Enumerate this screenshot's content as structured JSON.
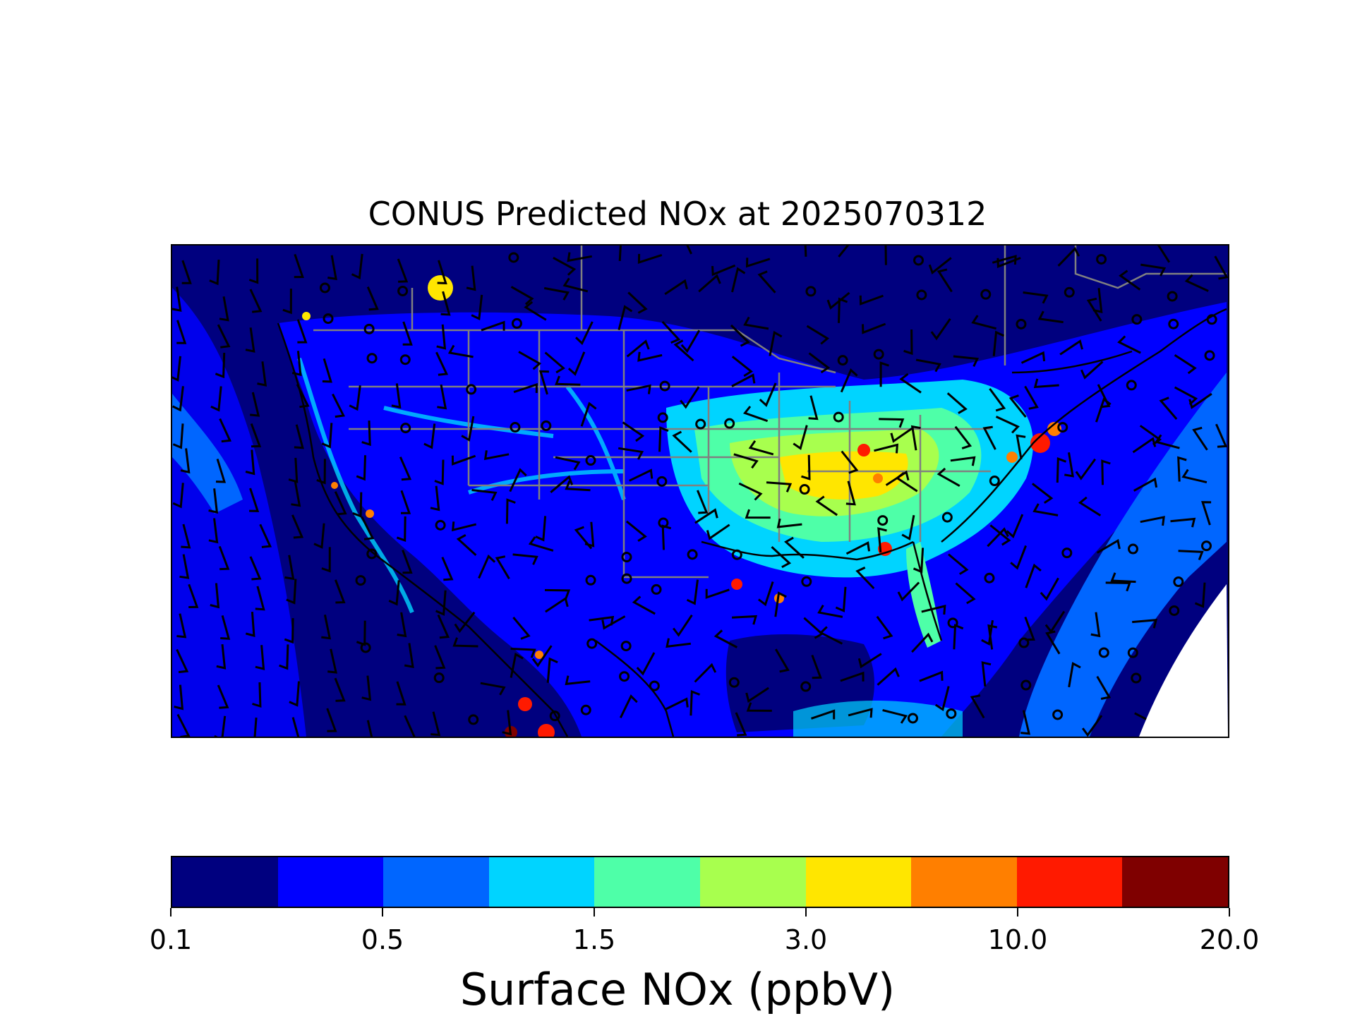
{
  "title": "CONUS Predicted NOx at 2025070312",
  "colorbar": {
    "label": "Surface NOx (ppbV)",
    "colors": [
      "#00007f",
      "#0000ff",
      "#0066ff",
      "#00d4ff",
      "#4effa8",
      "#a8ff4e",
      "#ffe600",
      "#ff7f00",
      "#ff1a00",
      "#7f0000"
    ],
    "ticks": [
      "0.1",
      "0.5",
      "1.5",
      "3.0",
      "10.0",
      "20.0"
    ]
  },
  "map": {
    "variable": "Surface NOx",
    "units": "ppbV",
    "features": [
      "nox-concentration-field",
      "wind-barbs",
      "calm-wind-circles",
      "coastlines",
      "state-borders",
      "country-borders"
    ],
    "legend_placement": "bottom"
  }
}
